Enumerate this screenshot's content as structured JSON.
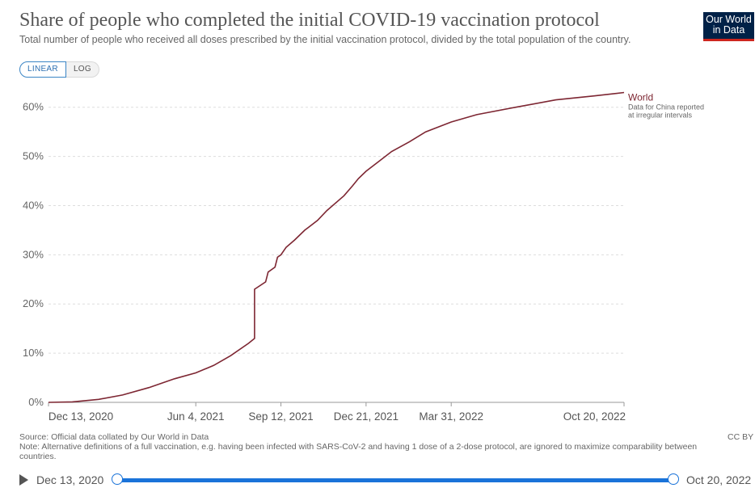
{
  "header": {
    "title": "Share of people who completed the initial COVID-19 vaccination protocol",
    "subtitle": "Total number of people who received all doses prescribed by the initial vaccination protocol, divided by the total population of the country.",
    "logo_line1": "Our World",
    "logo_line2": "in Data"
  },
  "controls": {
    "linear_label": "LINEAR",
    "log_label": "LOG"
  },
  "chart_data": {
    "type": "line",
    "title": "Share of people who completed the initial COVID-19 vaccination protocol",
    "xlabel": "",
    "ylabel": "",
    "x_range": [
      "2020-12-13",
      "2022-10-20"
    ],
    "ylim": [
      0,
      60
    ],
    "y_ticks": [
      0,
      10,
      20,
      30,
      40,
      50,
      60
    ],
    "y_tick_labels": [
      "0%",
      "10%",
      "20%",
      "30%",
      "40%",
      "50%",
      "60%"
    ],
    "x_ticks": [
      "2020-12-13",
      "2021-06-04",
      "2021-09-12",
      "2021-12-21",
      "2022-03-31",
      "2022-10-20"
    ],
    "x_tick_labels": [
      "Dec 13, 2020",
      "Jun 4, 2021",
      "Sep 12, 2021",
      "Dec 21, 2021",
      "Mar 31, 2022",
      "Oct 20, 2022"
    ],
    "grid": "horizontal dashed",
    "series": [
      {
        "name": "World",
        "color": "#7d2632",
        "annotation": "Data for China reported at irregular intervals",
        "points": [
          [
            "2020-12-13",
            0
          ],
          [
            "2021-01-10",
            0.1
          ],
          [
            "2021-02-10",
            0.6
          ],
          [
            "2021-03-10",
            1.5
          ],
          [
            "2021-04-10",
            3
          ],
          [
            "2021-05-10",
            4.8
          ],
          [
            "2021-06-04",
            6
          ],
          [
            "2021-06-25",
            7.5
          ],
          [
            "2021-07-15",
            9.5
          ],
          [
            "2021-08-05",
            12
          ],
          [
            "2021-08-12",
            13
          ],
          [
            "2021-08-12",
            23
          ],
          [
            "2021-08-25",
            24.5
          ],
          [
            "2021-08-28",
            26.5
          ],
          [
            "2021-09-05",
            27.5
          ],
          [
            "2021-09-08",
            29.5
          ],
          [
            "2021-09-12",
            30
          ],
          [
            "2021-09-18",
            31.5
          ],
          [
            "2021-09-28",
            33
          ],
          [
            "2021-10-10",
            35
          ],
          [
            "2021-10-25",
            37
          ],
          [
            "2021-11-05",
            39
          ],
          [
            "2021-11-25",
            42
          ],
          [
            "2021-12-05",
            44
          ],
          [
            "2021-12-12",
            45.5
          ],
          [
            "2021-12-21",
            47
          ],
          [
            "2022-01-05",
            49
          ],
          [
            "2022-01-20",
            51
          ],
          [
            "2022-02-10",
            53
          ],
          [
            "2022-03-01",
            55
          ],
          [
            "2022-03-31",
            57
          ],
          [
            "2022-04-30",
            58.5
          ],
          [
            "2022-06-15",
            60
          ],
          [
            "2022-08-01",
            61.5
          ],
          [
            "2022-09-15",
            62.3
          ],
          [
            "2022-10-20",
            63
          ]
        ]
      }
    ]
  },
  "footer": {
    "source": "Source: Official data collated by Our World in Data",
    "note": "Note: Alternative definitions of a full vaccination, e.g. having been infected with SARS-CoV-2 and having 1 dose of a 2-dose protocol, are ignored to maximize comparability between countries.",
    "license": "CC BY"
  },
  "timeline": {
    "start_label": "Dec 13, 2020",
    "end_label": "Oct 20, 2022"
  }
}
